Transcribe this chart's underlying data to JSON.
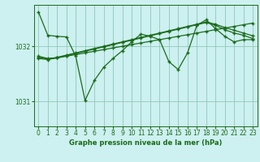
{
  "bg_color": "#cdf0f0",
  "line_color": "#1a6b1a",
  "grid_color": "#90c8b8",
  "title": "Graphe pression niveau de la mer (hPa)",
  "ylim": [
    1030.55,
    1032.75
  ],
  "xlim": [
    -0.5,
    23.5
  ],
  "yticks": [
    1031,
    1032
  ],
  "xticks": [
    0,
    1,
    2,
    3,
    4,
    5,
    6,
    7,
    8,
    9,
    10,
    11,
    12,
    13,
    14,
    15,
    16,
    17,
    18,
    19,
    20,
    21,
    22,
    23
  ],
  "series1": [
    1032.62,
    1032.2,
    1032.18,
    1032.17,
    1031.82,
    1031.02,
    1031.38,
    1031.62,
    1031.78,
    1031.92,
    1032.08,
    1032.22,
    1032.18,
    1032.12,
    1031.72,
    1031.58,
    1031.88,
    1032.38,
    1032.48,
    1032.32,
    1032.18,
    1032.08,
    1032.12,
    1032.12
  ],
  "series2": [
    1031.82,
    1031.78,
    1031.79,
    1031.82,
    1031.85,
    1031.88,
    1031.91,
    1031.94,
    1031.97,
    1032.0,
    1032.03,
    1032.06,
    1032.09,
    1032.12,
    1032.15,
    1032.18,
    1032.21,
    1032.24,
    1032.27,
    1032.3,
    1032.33,
    1032.36,
    1032.39,
    1032.42
  ],
  "series3": [
    1031.78,
    1031.76,
    1031.79,
    1031.83,
    1031.87,
    1031.91,
    1031.95,
    1031.99,
    1032.03,
    1032.07,
    1032.11,
    1032.15,
    1032.19,
    1032.23,
    1032.27,
    1032.31,
    1032.35,
    1032.39,
    1032.43,
    1032.38,
    1032.3,
    1032.24,
    1032.2,
    1032.14
  ],
  "series4": [
    1031.8,
    1031.77,
    1031.8,
    1031.84,
    1031.88,
    1031.92,
    1031.96,
    1032.0,
    1032.04,
    1032.08,
    1032.12,
    1032.16,
    1032.2,
    1032.24,
    1032.28,
    1032.32,
    1032.36,
    1032.4,
    1032.44,
    1032.4,
    1032.34,
    1032.29,
    1032.24,
    1032.19
  ]
}
